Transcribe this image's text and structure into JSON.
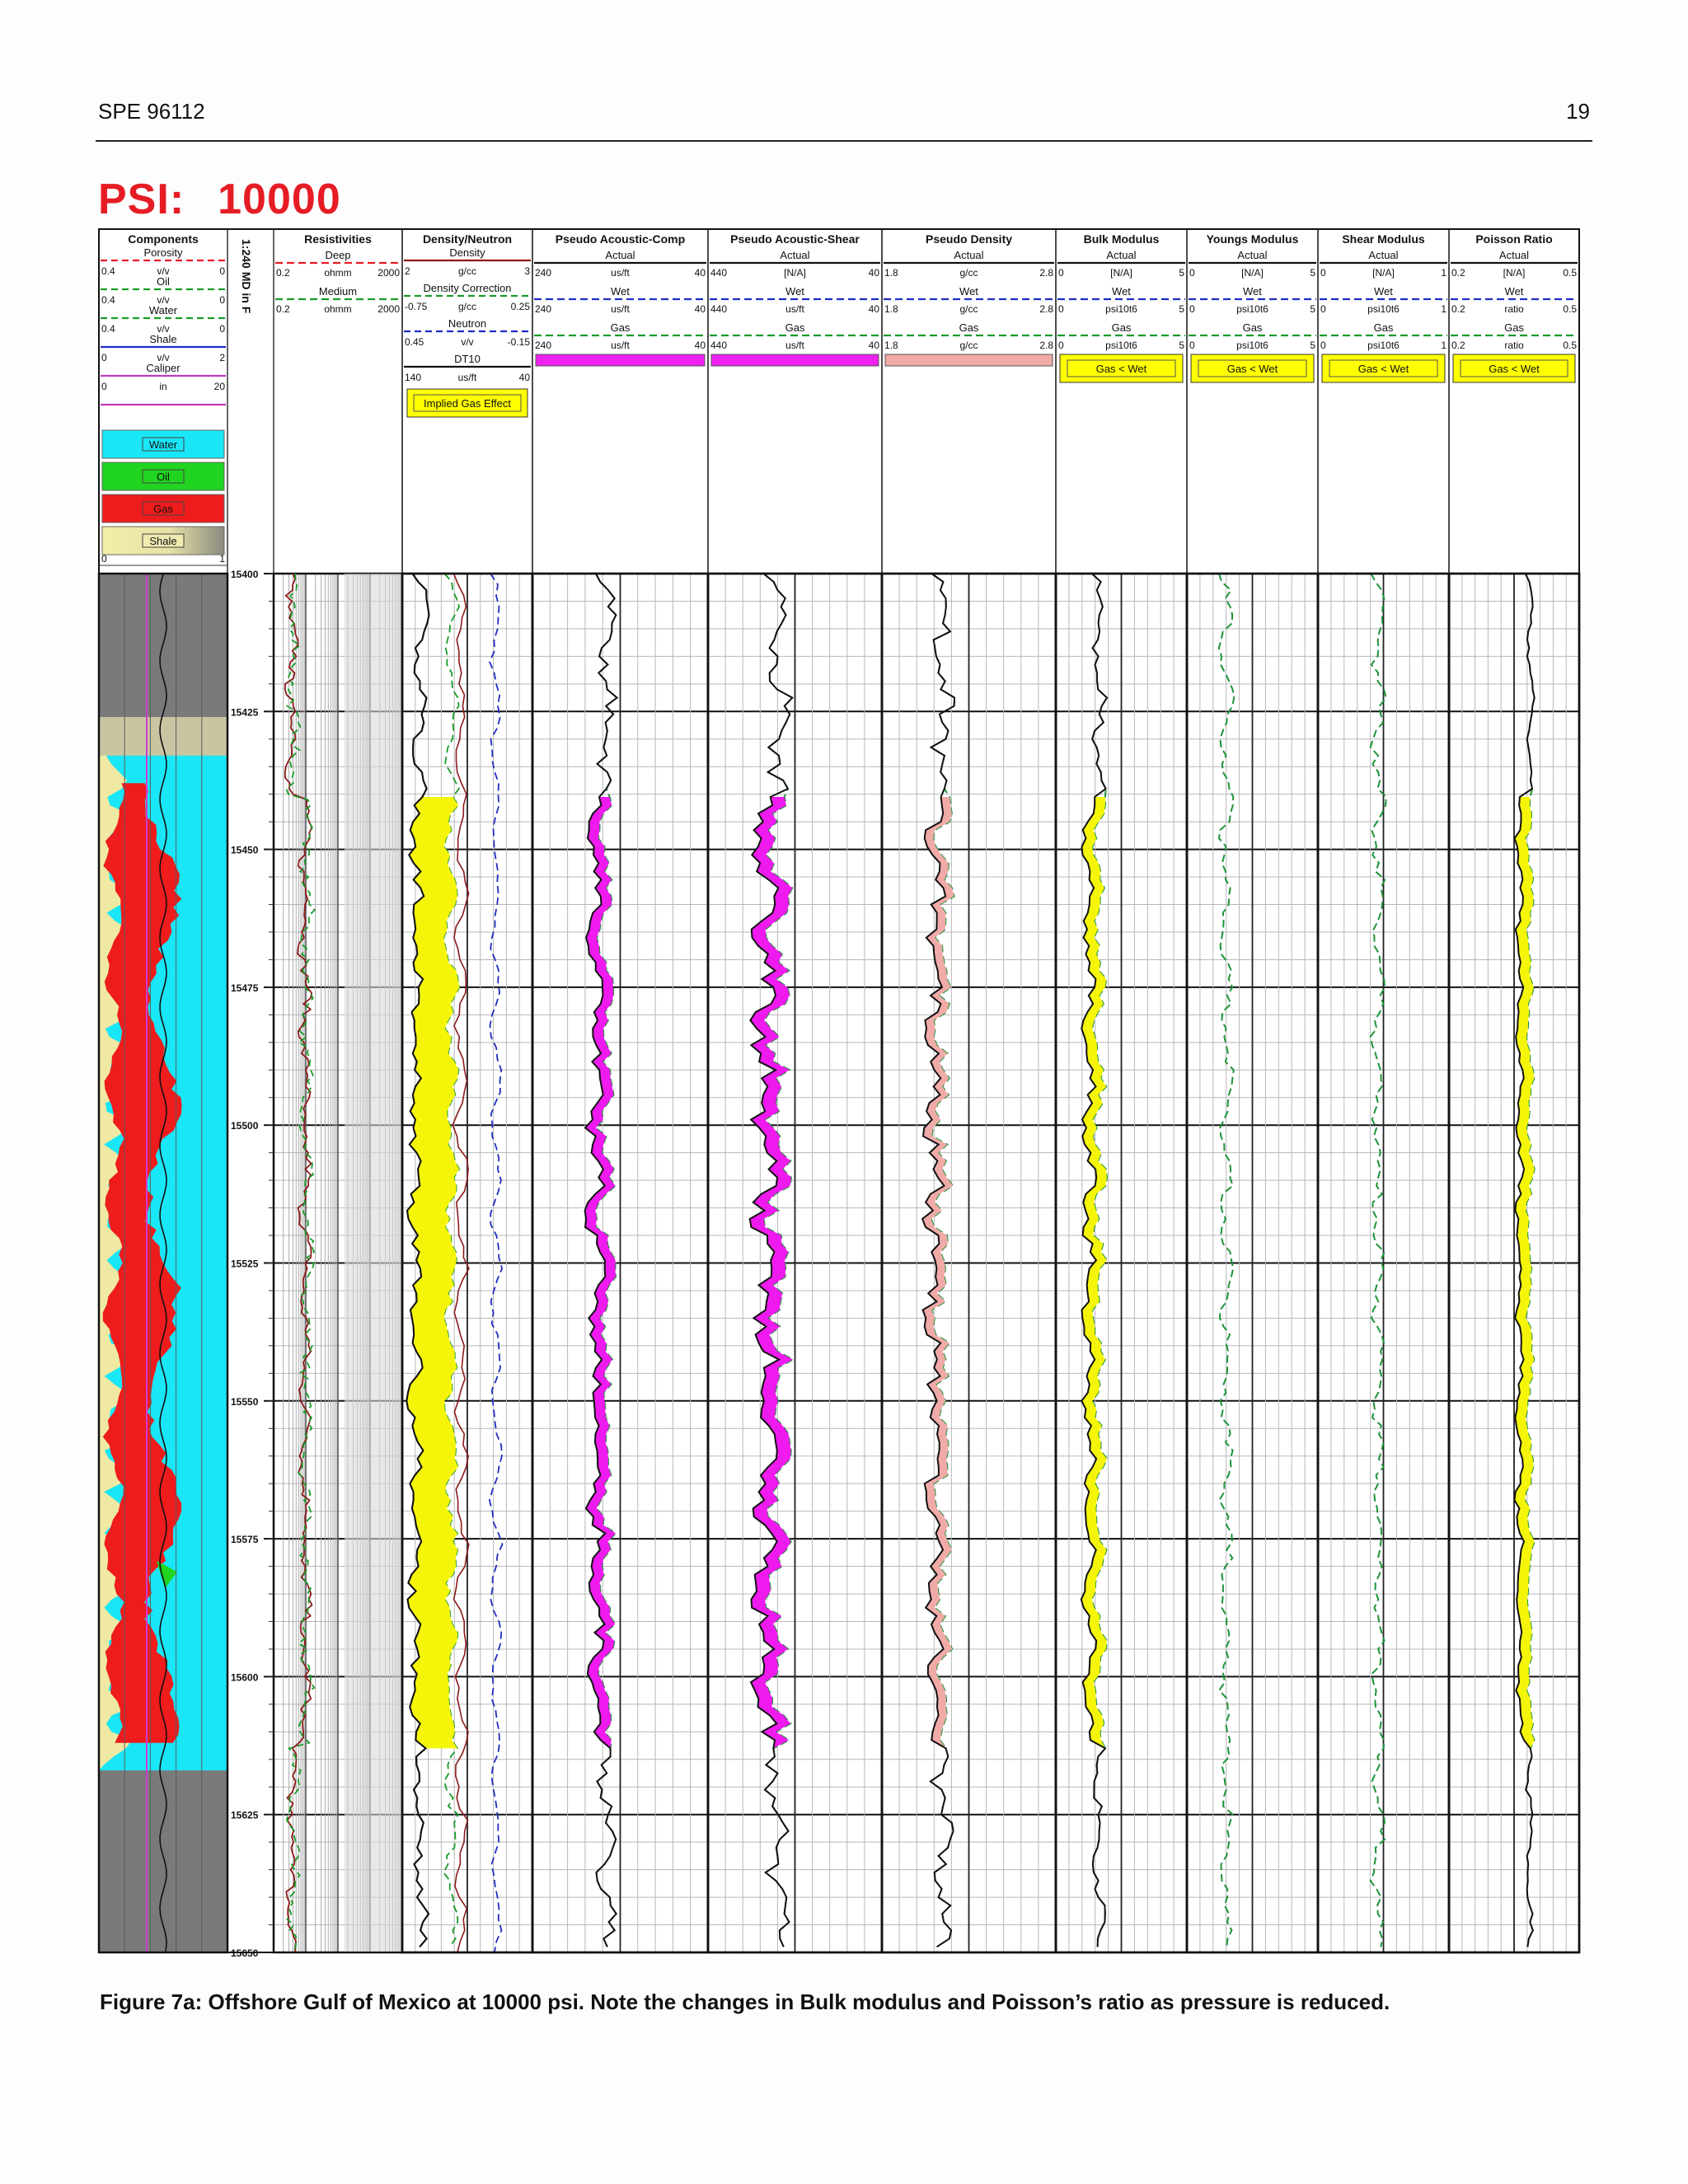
{
  "page": {
    "header_left": "SPE 96112",
    "header_right": "19"
  },
  "title": {
    "label": "PSI:",
    "value": "10000"
  },
  "caption": "Figure 7a: Offshore Gulf of Mexico at 10000 psi.  Note the changes in Bulk modulus and Poisson’s ratio as pressure is reduced.",
  "depth_track": {
    "label": "1:240 MD in F",
    "ticks": [
      "15400",
      "15425",
      "15450",
      "15475",
      "15500",
      "15525",
      "15550",
      "15575",
      "15600",
      "15625",
      "15650"
    ]
  },
  "components": {
    "title": "Components",
    "rows": [
      {
        "name": "Porosity",
        "min": "",
        "unit": "",
        "max": "",
        "color": "#e61c24",
        "dash": true
      },
      {
        "name": "Oil",
        "min": "0.4",
        "unit": "v/v",
        "max": "0",
        "color": "#1a9b2a",
        "dash": true
      },
      {
        "name": "Water",
        "min": "0.4",
        "unit": "v/v",
        "max": "0",
        "color": "#1a9b2a",
        "dash": true
      },
      {
        "name": "Shale",
        "min": "0.4",
        "unit": "v/v",
        "max": "0",
        "color": "#1f2dbf",
        "dash": false
      },
      {
        "name": "Caliper",
        "min": "0",
        "unit": "v/v",
        "max": "2",
        "color": "#c03ac0",
        "dash": false
      },
      {
        "name": "",
        "min": "0",
        "unit": "in",
        "max": "20",
        "color": "#c03ac0",
        "dash": false
      }
    ],
    "legend": [
      {
        "label": "Water",
        "color": "#19e6f6"
      },
      {
        "label": "Oil",
        "color": "#20d420"
      },
      {
        "label": "Gas",
        "color": "#ee1c1c"
      },
      {
        "label": "Shale",
        "color": "#e8e3a0"
      }
    ],
    "scale_min": "0",
    "scale_max": "1"
  },
  "resistivities": {
    "title": "Resistivities",
    "rows": [
      {
        "name": "Deep",
        "min": "0.2",
        "unit": "ohmm",
        "max": "2000",
        "color": "#e61c24",
        "dash": true
      },
      {
        "name": "Medium",
        "min": "0.2",
        "unit": "ohmm",
        "max": "2000",
        "color": "#1a9b2a",
        "dash": true
      }
    ]
  },
  "density_neutron": {
    "title": "Density/Neutron",
    "rows": [
      {
        "name": "Density",
        "min": "2",
        "unit": "g/cc",
        "max": "3",
        "color": "#8b1a1a",
        "dash": false
      },
      {
        "name": "Density Correction",
        "min": "-0.75",
        "unit": "g/cc",
        "max": "0.25",
        "color": "#1a9b2a",
        "dash": true
      },
      {
        "name": "Neutron",
        "min": "0.45",
        "unit": "v/v",
        "max": "-0.15",
        "color": "#1f2dbf",
        "dash": true
      },
      {
        "name": "DT10",
        "min": "140",
        "unit": "us/ft",
        "max": "40",
        "color": "#111111",
        "dash": false
      }
    ],
    "button": "Implied Gas Effect"
  },
  "tracks": [
    {
      "title": "Pseudo Acoustic-Comp",
      "rows": [
        {
          "name": "Actual",
          "min": "240",
          "unit": "us/ft",
          "max": "40",
          "color": "#111111",
          "dash": false
        },
        {
          "name": "Wet",
          "min": "240",
          "unit": "us/ft",
          "max": "40",
          "color": "#1f2dbf",
          "dash": true
        },
        {
          "name": "Gas",
          "min": "240",
          "unit": "us/ft",
          "max": "40",
          "color": "#1a9b2a",
          "dash": true
        }
      ],
      "swatch": "#ee22ee",
      "button": ""
    },
    {
      "title": "Pseudo Acoustic-Shear",
      "rows": [
        {
          "name": "Actual",
          "min": "440",
          "unit": "[N/A]",
          "max": "40",
          "color": "#111111",
          "dash": false
        },
        {
          "name": "Wet",
          "min": "440",
          "unit": "us/ft",
          "max": "40",
          "color": "#1f2dbf",
          "dash": true
        },
        {
          "name": "Gas",
          "min": "440",
          "unit": "us/ft",
          "max": "40",
          "color": "#1a9b2a",
          "dash": true
        }
      ],
      "swatch": "#ee22ee",
      "button": ""
    },
    {
      "title": "Pseudo Density",
      "rows": [
        {
          "name": "Actual",
          "min": "1.8",
          "unit": "g/cc",
          "max": "2.8",
          "color": "#111111",
          "dash": false
        },
        {
          "name": "Wet",
          "min": "1.8",
          "unit": "g/cc",
          "max": "2.8",
          "color": "#1f2dbf",
          "dash": true
        },
        {
          "name": "Gas",
          "min": "1.8",
          "unit": "g/cc",
          "max": "2.8",
          "color": "#1a9b2a",
          "dash": true
        }
      ],
      "swatch": "#f0aaa8",
      "button": ""
    },
    {
      "title": "Bulk Modulus",
      "rows": [
        {
          "name": "Actual",
          "min": "0",
          "unit": "[N/A]",
          "max": "5",
          "color": "#111111",
          "dash": false
        },
        {
          "name": "Wet",
          "min": "0",
          "unit": "psi10t6",
          "max": "5",
          "color": "#1f2dbf",
          "dash": true
        },
        {
          "name": "Gas",
          "min": "0",
          "unit": "psi10t6",
          "max": "5",
          "color": "#1a9b2a",
          "dash": true
        }
      ],
      "swatch": "",
      "button": "Gas < Wet"
    },
    {
      "title": "Youngs Modulus",
      "rows": [
        {
          "name": "Actual",
          "min": "0",
          "unit": "[N/A]",
          "max": "5",
          "color": "#111111",
          "dash": false
        },
        {
          "name": "Wet",
          "min": "0",
          "unit": "psi10t6",
          "max": "5",
          "color": "#1f2dbf",
          "dash": true
        },
        {
          "name": "Gas",
          "min": "0",
          "unit": "psi10t6",
          "max": "5",
          "color": "#1a9b2a",
          "dash": true
        }
      ],
      "swatch": "",
      "button": "Gas < Wet"
    },
    {
      "title": "Shear Modulus",
      "rows": [
        {
          "name": "Actual",
          "min": "0",
          "unit": "[N/A]",
          "max": "1",
          "color": "#111111",
          "dash": false
        },
        {
          "name": "Wet",
          "min": "0",
          "unit": "psi10t6",
          "max": "1",
          "color": "#1f2dbf",
          "dash": true
        },
        {
          "name": "Gas",
          "min": "0",
          "unit": "psi10t6",
          "max": "1",
          "color": "#1a9b2a",
          "dash": true
        }
      ],
      "swatch": "",
      "button": "Gas < Wet"
    },
    {
      "title": "Poisson Ratio",
      "rows": [
        {
          "name": "Actual",
          "min": "0.2",
          "unit": "[N/A]",
          "max": "0.5",
          "color": "#111111",
          "dash": false
        },
        {
          "name": "Wet",
          "min": "0.2",
          "unit": "ratio",
          "max": "0.5",
          "color": "#1f2dbf",
          "dash": true
        },
        {
          "name": "Gas",
          "min": "0.2",
          "unit": "ratio",
          "max": "0.5",
          "color": "#1a9b2a",
          "dash": true
        }
      ],
      "swatch": "",
      "button": "Gas < Wet"
    }
  ],
  "colors": {
    "gas": "#ee1c1c",
    "water": "#19e6f6",
    "oil": "#20d420",
    "shale": "#efe9a3",
    "shale_dark": "#7a7a7a",
    "fill_yellow": "#f5f50a",
    "fill_magenta": "#ee1aee",
    "fill_pink": "#f0aaa8",
    "button_yellow": "#ffff00"
  }
}
